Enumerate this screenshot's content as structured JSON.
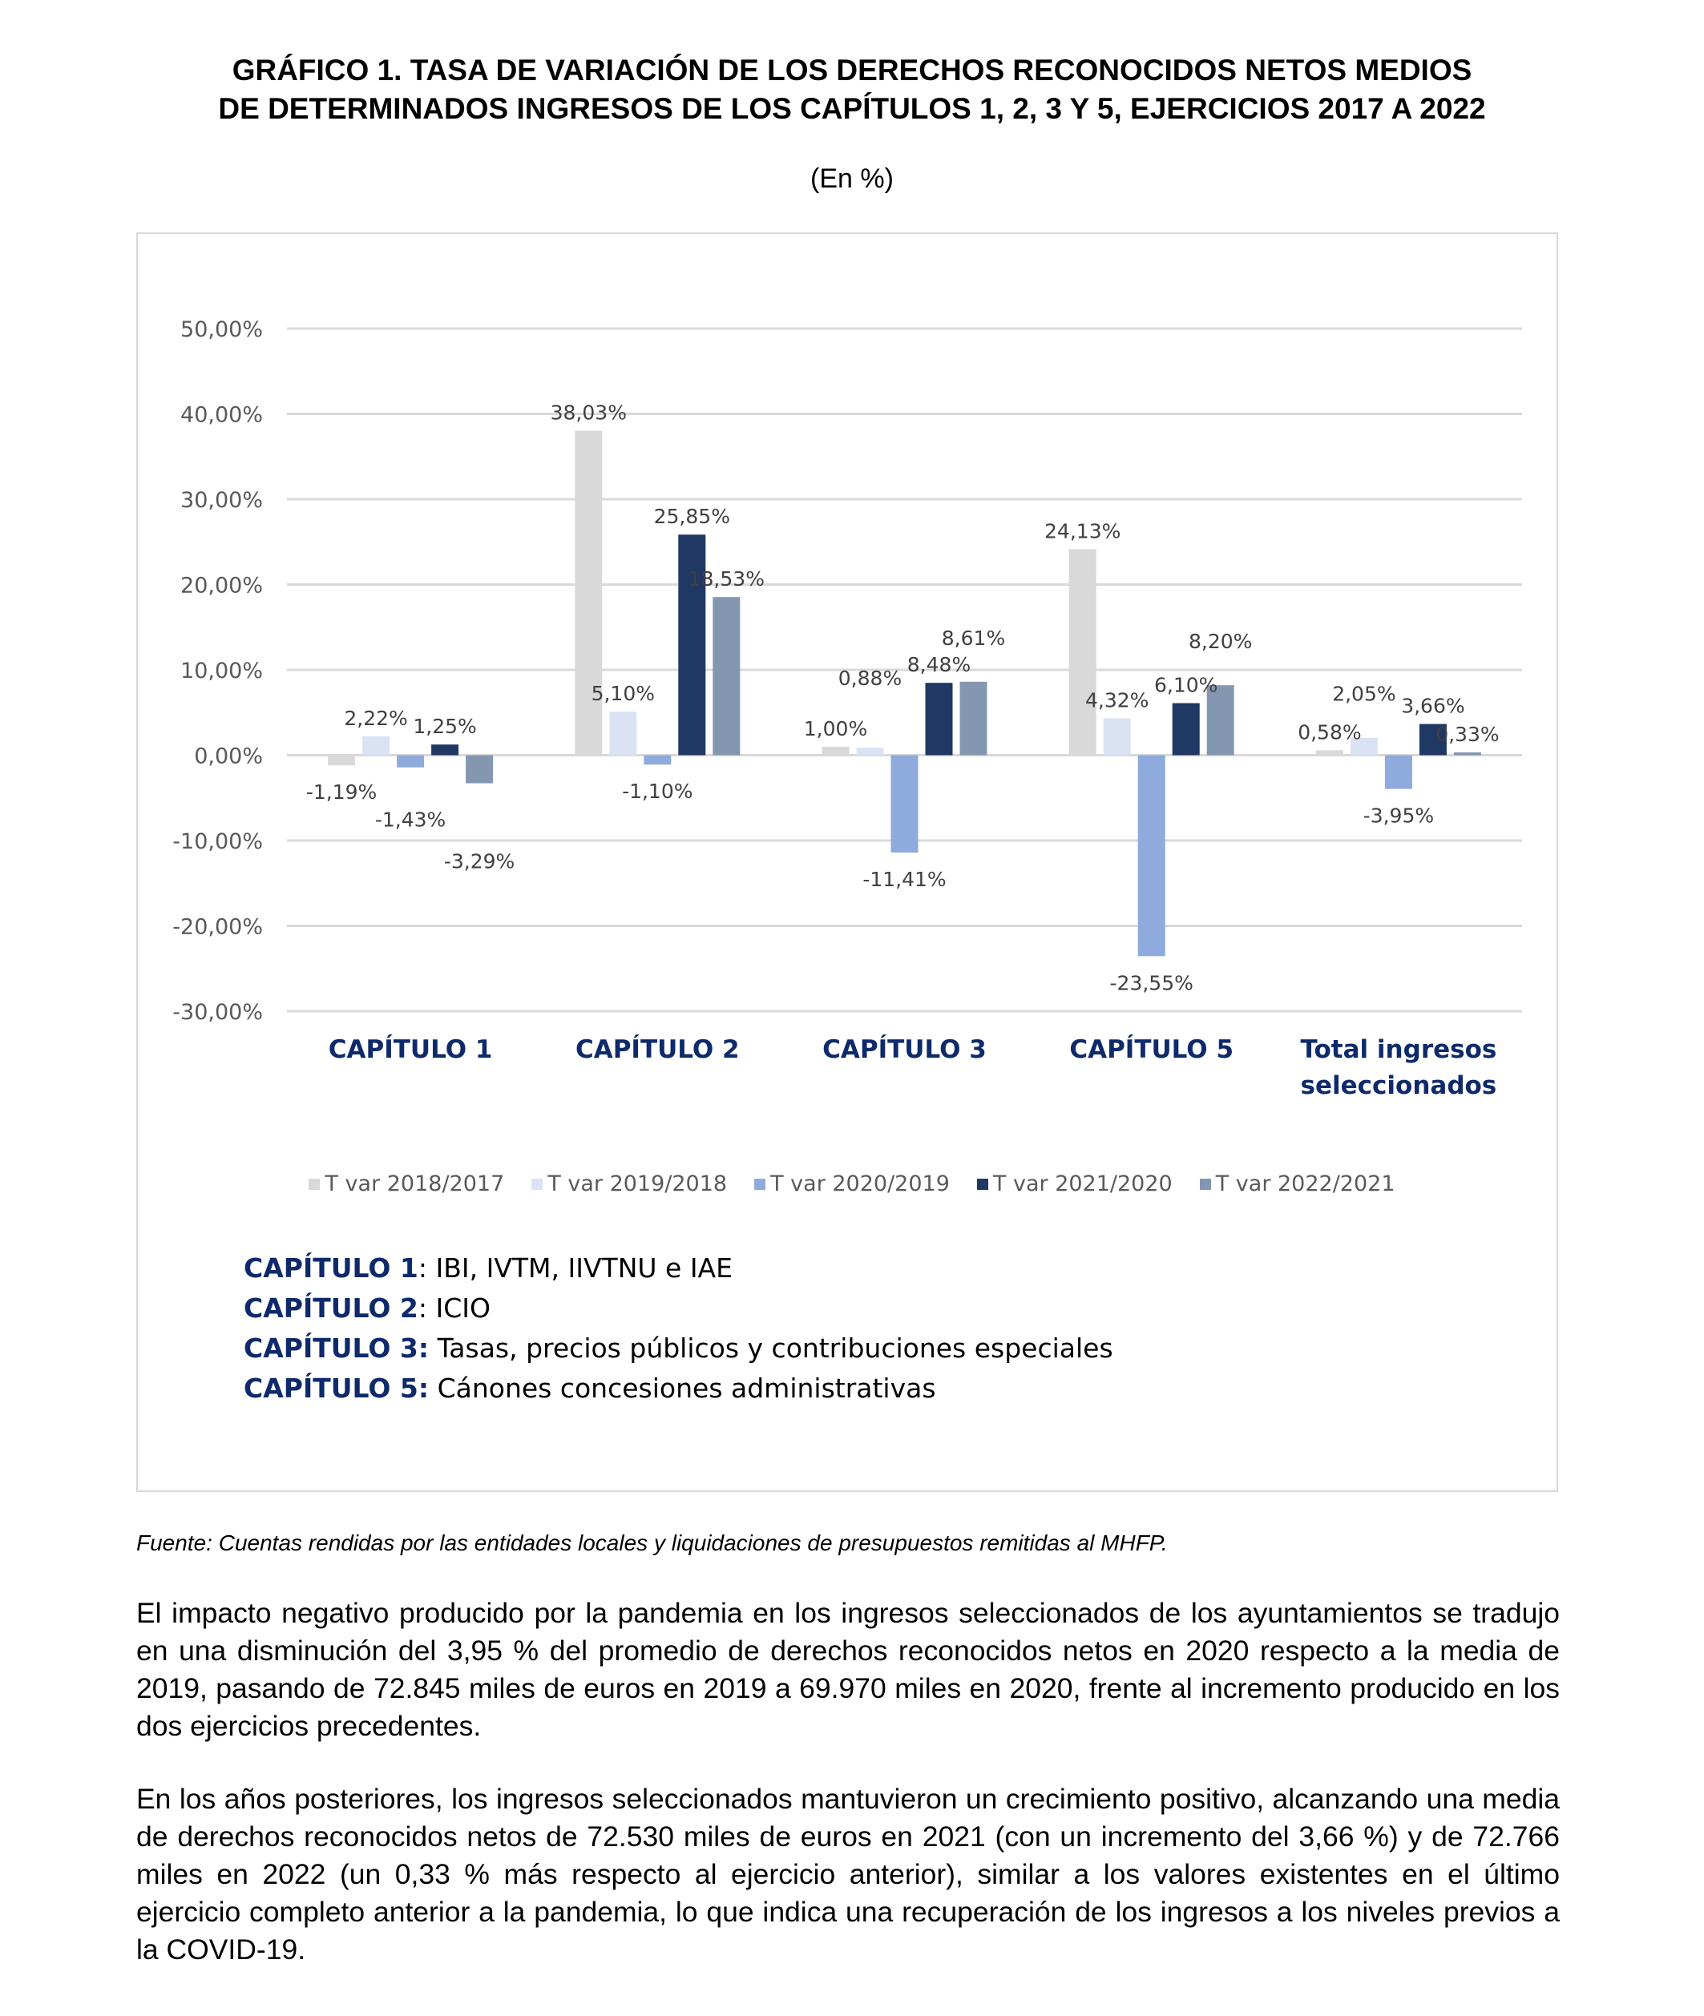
{
  "title_lines": [
    "GRÁFICO 1.   TASA DE VARIACIÓN DE LOS DERECHOS RECONOCIDOS NETOS MEDIOS",
    "DE DETERMINADOS INGRESOS DE LOS CAPÍTULOS 1, 2, 3 Y 5, EJERCICIOS 2017 A 2022"
  ],
  "subtitle": "(En %)",
  "chart_data": {
    "type": "bar",
    "categories": [
      [
        "CAPÍTULO 1"
      ],
      [
        "CAPÍTULO 2"
      ],
      [
        "CAPÍTULO 3"
      ],
      [
        "CAPÍTULO 5"
      ],
      [
        "Total ingresos",
        "seleccionados"
      ]
    ],
    "series": [
      {
        "name": "T var 2018/2017",
        "color": "#d9d9d9",
        "values": [
          -1.19,
          38.03,
          1.0,
          24.13,
          0.58
        ],
        "labels": [
          "-1,19%",
          "38,03%",
          "1,00%",
          "24,13%",
          "0,58%"
        ]
      },
      {
        "name": "T var 2019/2018",
        "color": "#dae3f3",
        "values": [
          2.22,
          5.1,
          0.88,
          4.32,
          2.05
        ],
        "labels": [
          "2,22%",
          "5,10%",
          "0,88%",
          "4,32%",
          "2,05%"
        ]
      },
      {
        "name": "T var 2020/2019",
        "color": "#8faadc",
        "values": [
          -1.43,
          -1.1,
          -11.41,
          -23.55,
          -3.95
        ],
        "labels": [
          "-1,43%",
          "-1,10%",
          "-11,41%",
          "-23,55%",
          "-3,95%"
        ]
      },
      {
        "name": "T var 2021/2020",
        "color": "#203864",
        "values": [
          1.25,
          25.85,
          8.48,
          6.1,
          3.66
        ],
        "labels": [
          "1,25%",
          "25,85%",
          "8,48%",
          "6,10%",
          "3,66%"
        ]
      },
      {
        "name": "T var 2022/2021",
        "color": "#8497b0",
        "values": [
          -3.29,
          18.53,
          8.61,
          8.2,
          0.33
        ],
        "labels": [
          "-3,29%",
          "18,53%",
          "8,61%",
          "8,20%",
          "0,33%"
        ]
      }
    ],
    "yticks": [
      50,
      40,
      30,
      20,
      10,
      0,
      -10,
      -20,
      -30
    ],
    "ytick_labels": [
      "50,00%",
      "40,00%",
      "30,00%",
      "20,00%",
      "10,00%",
      "0,00%",
      "-10,00%",
      "-20,00%",
      "-30,00%"
    ],
    "ylim": [
      -30,
      50
    ],
    "grid": true,
    "legend_position": "bottom",
    "category_color": "#0e2a6b"
  },
  "descriptions": [
    {
      "key": "CAPÍTULO 1",
      "sep": ": ",
      "text": "IBI, IVTM, IIVTNU e IAE"
    },
    {
      "key": "CAPÍTULO 2",
      "sep": ": ",
      "text": "ICIO"
    },
    {
      "key": "CAPÍTULO 3:",
      "sep": " ",
      "text": "Tasas, precios públicos y contribuciones especiales"
    },
    {
      "key": "CAPÍTULO 5:",
      "sep": " ",
      "text": "Cánones concesiones administrativas"
    }
  ],
  "source": "Fuente: Cuentas rendidas por las entidades locales y liquidaciones de presupuestos remitidas al MHFP.",
  "paragraphs": [
    "El impacto negativo producido por la pandemia en los ingresos seleccionados de los ayuntamientos se tradujo en una disminución del 3,95 % del promedio de derechos reconocidos netos en 2020 respecto a la media de 2019, pasando de 72.845 miles de euros en 2019 a 69.970 miles en 2020, frente al incremento producido en los dos ejercicios precedentes.",
    "En los años posteriores, los ingresos seleccionados mantuvieron un crecimiento positivo, alcanzando una media de derechos reconocidos netos de 72.530 miles de euros en 2021 (con un incremento del 3,66 %) y de 72.766 miles en 2022 (un 0,33 % más respecto al ejercicio anterior), similar a los valores existentes en el último ejercicio completo anterior a la pandemia, lo que indica una recuperación de los ingresos a los niveles previos a la COVID-19."
  ]
}
